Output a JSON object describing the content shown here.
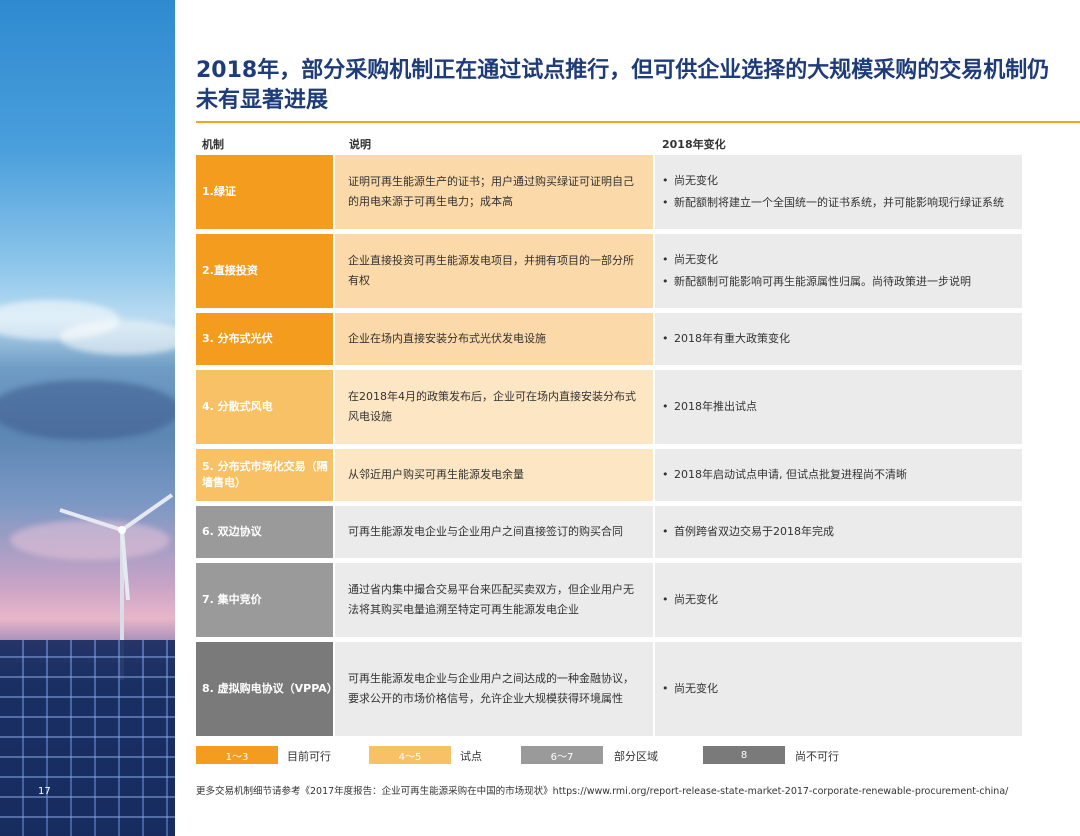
{
  "page_number": "17",
  "title": "2018年，部分采购机制正在通过试点推行，但可供企业选择的大规模采购的交易机制仍未有显著进展",
  "headers": {
    "col1": "机制",
    "col2": "说明",
    "col3": "2018年变化"
  },
  "rows": [
    {
      "mechanism": "1.绿证",
      "description": "证明可再生能源生产的证书；用户通过购买绿证可证明自己的用电来源于可再生电力；成本高",
      "changes": [
        "尚无变化",
        "新配额制将建立一个全国统一的证书系统，并可能影响现行绿证系统"
      ]
    },
    {
      "mechanism": "2.直接投资",
      "description": "企业直接投资可再生能源发电项目，并拥有项目的一部分所有权",
      "changes": [
        "尚无变化",
        "新配额制可能影响可再生能源属性归属。尚待政策进一步说明"
      ]
    },
    {
      "mechanism": "3. 分布式光伏",
      "description": "企业在场内直接安装分布式光伏发电设施",
      "changes": [
        "2018年有重大政策变化"
      ]
    },
    {
      "mechanism": "4. 分散式风电",
      "description": "在2018年4月的政策发布后，企业可在场内直接安装分布式风电设施",
      "changes": [
        "2018年推出试点"
      ]
    },
    {
      "mechanism": "5. 分布式市场化交易（隔墙售电）",
      "description": "从邻近用户购买可再生能源发电余量",
      "changes": [
        "2018年启动试点申请, 但试点批复进程尚不清晰"
      ]
    },
    {
      "mechanism": "6. 双边协议",
      "description": "可再生能源发电企业与企业用户之间直接签订的购买合同",
      "changes": [
        "首例跨省双边交易于2018年完成"
      ]
    },
    {
      "mechanism": "7. 集中竞价",
      "description": "通过省内集中撮合交易平台来匹配买卖双方，但企业用户无法将其购买电量追溯至特定可再生能源发电企业",
      "changes": [
        "尚无变化"
      ]
    },
    {
      "mechanism": "8. 虚拟购电协议（VPPA）",
      "description": "可再生能源发电企业与企业用户之间达成的一种金融协议，要求公开的市场价格信号，允许企业大规模获得环境属性",
      "changes": [
        "尚无变化"
      ]
    }
  ],
  "legend": [
    {
      "range": "1～3",
      "label": "目前可行",
      "color": "#f39c1d"
    },
    {
      "range": "4～5",
      "label": "试点",
      "color": "#f9c165"
    },
    {
      "range": "6～7",
      "label": "部分区域",
      "color": "#9a9a9a"
    },
    {
      "range": "8",
      "label": "尚不可行",
      "color": "#7a7a7a"
    }
  ],
  "footer": "更多交易机制细节请参考《2017年度报告：企业可再生能源采购在中国的市场现状》https://www.rmi.org/report-release-state-market-2017-corporate-renewable-procurement-china/"
}
